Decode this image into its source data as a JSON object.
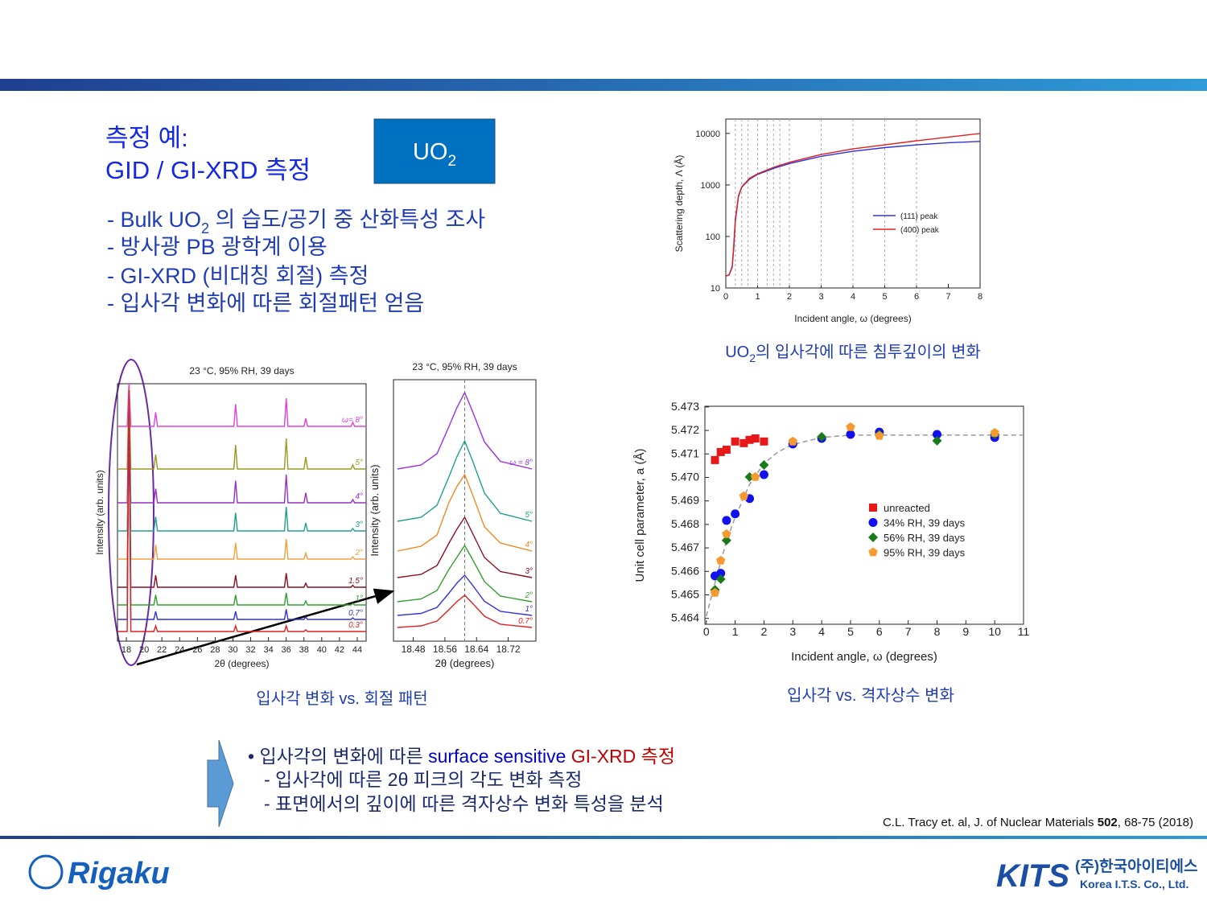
{
  "slide": {
    "heading": [
      "측정 예:",
      "GID / GI-XRD 측정"
    ],
    "badge": {
      "t": "UO",
      "sub": "2"
    },
    "bullets": [
      {
        "pre": "- Bulk UO",
        "sub": "2",
        "post": " 의 습도/공기 중 산화특성 조사"
      },
      {
        "pre": "- 방사광 PB 광학계 이용"
      },
      {
        "pre": "- GI-XRD (비대칭 회절) 측정"
      },
      {
        "pre": "- 입사각 변화에 따른 회절패턴 얻음"
      }
    ],
    "captions": {
      "depth": {
        "pre": "UO",
        "sub": "2",
        "post": "의 입사각에 따른 침투깊이의 변화"
      },
      "xrd": "입사각 변화 vs. 회절 패턴",
      "lattice": "입사각 vs. 격자상수 변화"
    },
    "summary": {
      "line1": [
        "• 입사각의 변화에 따른 ",
        "surface sensitive",
        " GI-XRD 측정"
      ],
      "line2": "- 입사각에 따른 2θ 피크의 각도 변화 측정",
      "line3": "- 표면에서의 깊이에 따른 격자상수 변화 특성을 분석"
    },
    "citation": {
      "pre": "C.L. Tracy et. al, J. of Nuclear Materials ",
      "bold": "502",
      "post": ", 68-75 (2018)"
    },
    "logos": {
      "left": "Rigaku",
      "right": "KITS",
      "right_kr": "(주)한국아이티에스",
      "right_en": "Korea I.T.S. Co., Ltd."
    }
  },
  "chart_data": [
    {
      "type": "line",
      "waterfall": true,
      "title": "23 °C, 95% RH, 39 days",
      "x_label": "2θ (degrees)",
      "y_label": "Intensity (arb. units)",
      "xlim": [
        17,
        45
      ],
      "xticks": [
        18,
        20,
        22,
        24,
        26,
        28,
        30,
        32,
        34,
        36,
        38,
        40,
        42,
        44
      ],
      "x": [
        17,
        18.1,
        18.3,
        18.5,
        21.1,
        21.3,
        21.5,
        30.1,
        30.3,
        30.5,
        35.8,
        36,
        36.2,
        38,
        38.2,
        38.4,
        43.3,
        43.5,
        43.7,
        45
      ],
      "series": [
        {
          "name": "ω= 8°",
          "color": "#e040e0",
          "values": [
            0,
            0,
            1.1,
            0,
            0,
            0.35,
            0,
            0,
            0.55,
            0,
            0,
            0.7,
            0,
            0,
            0.2,
            0,
            0,
            0.1,
            0,
            0
          ]
        },
        {
          "name": "5°",
          "color": "#9a9a20",
          "values": [
            0,
            0,
            2,
            0,
            0,
            0.36,
            0,
            0,
            0.6,
            0,
            0,
            0.76,
            0,
            0,
            0.3,
            0,
            0,
            0.1,
            0,
            0
          ]
        },
        {
          "name": "4°",
          "color": "#9a30c0",
          "values": [
            0,
            0,
            2.5,
            0,
            0,
            0.35,
            0,
            0,
            0.55,
            0,
            0,
            0.7,
            0,
            0,
            0.25,
            0,
            0,
            0.08,
            0,
            0
          ]
        },
        {
          "name": "3°",
          "color": "#20a090",
          "values": [
            0,
            0,
            3,
            0,
            0,
            0.35,
            0,
            0,
            0.45,
            0,
            0,
            0.6,
            0,
            0,
            0.2,
            0,
            0,
            0.06,
            0,
            0
          ]
        },
        {
          "name": "2°",
          "color": "#f0a040",
          "values": [
            0,
            0,
            3.5,
            0,
            0,
            0.35,
            0,
            0,
            0.4,
            0,
            0,
            0.5,
            0,
            0,
            0.15,
            0,
            0,
            0.06,
            0,
            0
          ]
        },
        {
          "name": "1.5°",
          "color": "#8b1020",
          "values": [
            0,
            0,
            4,
            0,
            0,
            0.3,
            0,
            0,
            0.3,
            0,
            0,
            0.35,
            0,
            0,
            0.1,
            0,
            0,
            0.05,
            0,
            0
          ]
        },
        {
          "name": "1°",
          "color": "#30a030",
          "values": [
            0,
            0,
            5,
            0,
            0,
            0.25,
            0,
            0,
            0.25,
            0,
            0,
            0.3,
            0,
            0,
            0.1,
            0,
            0,
            0.04,
            0,
            0
          ]
        },
        {
          "name": "0.7°",
          "color": "#3030e0",
          "values": [
            0,
            0,
            5.5,
            0,
            0,
            0.2,
            0,
            0,
            0.2,
            0,
            0,
            0.25,
            0,
            0,
            0.06,
            0,
            0,
            0.04,
            0,
            0
          ]
        },
        {
          "name": "0.3°",
          "color": "#e02020",
          "values": [
            0,
            0,
            6,
            0,
            0,
            0.14,
            0,
            0,
            0.14,
            0,
            0,
            0.14,
            0,
            0,
            0.04,
            0,
            0,
            0,
            0,
            0
          ]
        }
      ]
    },
    {
      "type": "line",
      "waterfall": true,
      "title": "23 °C, 95% RH, 39 days",
      "x_label": "2θ (degrees)",
      "y_label": "Intensity (arb. units)",
      "xlim": [
        18.43,
        18.79
      ],
      "xticks": [
        18.48,
        18.56,
        18.64,
        18.72
      ],
      "vline": 18.61,
      "x": [
        18.44,
        18.5,
        18.54,
        18.57,
        18.59,
        18.61,
        18.63,
        18.66,
        18.7,
        18.78
      ],
      "series": [
        {
          "name": "ω = 8°",
          "color": "#9a30e0",
          "values": [
            0,
            0.1,
            0.38,
            1.05,
            1.52,
            1.9,
            1.43,
            0.67,
            0.19,
            0
          ]
        },
        {
          "name": "5°",
          "color": "#20a090",
          "values": [
            0,
            0.1,
            0.4,
            1.1,
            1.6,
            2,
            1.5,
            0.7,
            0.2,
            0
          ]
        },
        {
          "name": "4°",
          "color": "#f08a20",
          "values": [
            0,
            0.12,
            0.4,
            1.2,
            1.6,
            1.9,
            1.4,
            0.6,
            0.2,
            0
          ]
        },
        {
          "name": "3°",
          "color": "#8b1020",
          "values": [
            0,
            0.08,
            0.3,
            0.85,
            1.2,
            1.5,
            1.1,
            0.5,
            0.15,
            0
          ]
        },
        {
          "name": "2°",
          "color": "#30a030",
          "values": [
            0,
            0.07,
            0.28,
            0.8,
            1.1,
            1.4,
            1.05,
            0.5,
            0.14,
            0
          ]
        },
        {
          "name": "1°",
          "color": "#3030e0",
          "values": [
            0,
            0.05,
            0.2,
            0.55,
            0.8,
            1,
            0.75,
            0.35,
            0.1,
            0
          ]
        },
        {
          "name": "0.7°",
          "color": "#e02020",
          "values": [
            0,
            0.04,
            0.16,
            0.44,
            0.64,
            0.8,
            0.6,
            0.28,
            0.08,
            0
          ]
        }
      ]
    },
    {
      "type": "line",
      "log_y": true,
      "x_label": "Incident angle, ω (degrees)",
      "y_label": "Scattering depth, Λ (Å)",
      "xlim": [
        0,
        8
      ],
      "xticks": [
        0,
        1,
        2,
        3,
        4,
        5,
        6,
        7,
        8
      ],
      "ylim": [
        10,
        19000
      ],
      "yticks": [
        10,
        100,
        1000,
        10000
      ],
      "vlines": [
        0.3,
        0.5,
        0.7,
        1,
        1.3,
        1.5,
        1.7,
        2,
        3,
        4,
        5,
        6
      ],
      "x": [
        0,
        0.1,
        0.2,
        0.25,
        0.3,
        0.4,
        0.5,
        0.75,
        1,
        1.5,
        2,
        3,
        4,
        5,
        6,
        7,
        8
      ],
      "series": [
        {
          "name": "(111) peak",
          "color": "#3030e0",
          "values": [
            17,
            18,
            25,
            60,
            200,
            600,
            900,
            1300,
            1600,
            2100,
            2600,
            3600,
            4500,
            5300,
            6000,
            6600,
            7000
          ]
        },
        {
          "name": "(400) peak",
          "color": "#e02020",
          "values": [
            17,
            18,
            26,
            70,
            220,
            620,
            920,
            1350,
            1650,
            2200,
            2750,
            3900,
            5000,
            6000,
            7200,
            8500,
            10000
          ]
        }
      ]
    },
    {
      "type": "scatter",
      "x_label": "Incident angle, ω (degrees)",
      "y_label": "Unit cell parameter, a (Å)",
      "xlim": [
        -0.05,
        11
      ],
      "xticks": [
        0,
        1,
        2,
        3,
        4,
        5,
        6,
        7,
        8,
        9,
        10,
        11
      ],
      "ylim": [
        5.46375,
        5.47303
      ],
      "yticks": [
        5.464,
        5.465,
        5.466,
        5.467,
        5.468,
        5.469,
        {
          "value": 5.47,
          "label": "5.470"
        },
        5.471,
        5.472,
        5.473
      ],
      "fit": {
        "x": [
          0,
          0.3,
          0.5,
          0.7,
          1,
          1.5,
          2,
          2.5,
          3,
          4,
          5,
          6,
          8,
          11
        ],
        "values": [
          5.4641,
          5.4655,
          5.4664,
          5.4673,
          5.4683,
          5.4697,
          5.4706,
          5.4711,
          5.4714,
          5.4717,
          5.4718,
          5.4718,
          5.4718,
          5.4718
        ]
      },
      "series": [
        {
          "name": "unreacted",
          "color": "#e81818",
          "marker": "square",
          "x": [
            0.3,
            0.5,
            0.7,
            1,
            1.3,
            1.5,
            1.7,
            2
          ],
          "values": [
            5.47074,
            5.47108,
            5.47118,
            5.47153,
            5.47146,
            5.4716,
            5.47166,
            5.47153
          ]
        },
        {
          "name": "34% RH, 39 days",
          "color": "#1010f0",
          "marker": "circle",
          "x": [
            0.3,
            0.5,
            0.7,
            1,
            1.5,
            2,
            3,
            4,
            5,
            6,
            8,
            10
          ],
          "values": [
            5.46581,
            5.46592,
            5.46817,
            5.46845,
            5.4691,
            5.47012,
            5.47142,
            5.47166,
            5.47183,
            5.47193,
            5.47183,
            5.4717
          ]
        },
        {
          "name": "56% RH, 39 days",
          "color": "#1a7a1a",
          "marker": "diamond",
          "x": [
            0.3,
            0.5,
            0.7,
            1.5,
            2,
            4,
            6,
            8,
            10
          ],
          "values": [
            5.46522,
            5.46567,
            5.46732,
            5.47002,
            5.47053,
            5.47173,
            5.47183,
            5.47156,
            5.47183
          ]
        },
        {
          "name": "95% RH, 39 days",
          "color": "#f59a30",
          "marker": "pentagon",
          "x": [
            0.3,
            0.5,
            0.7,
            1.3,
            1.7,
            3,
            5,
            6,
            10
          ],
          "values": [
            5.46509,
            5.46646,
            5.46759,
            5.4692,
            5.47002,
            5.47153,
            5.47214,
            5.47177,
            5.4719
          ]
        }
      ]
    }
  ]
}
